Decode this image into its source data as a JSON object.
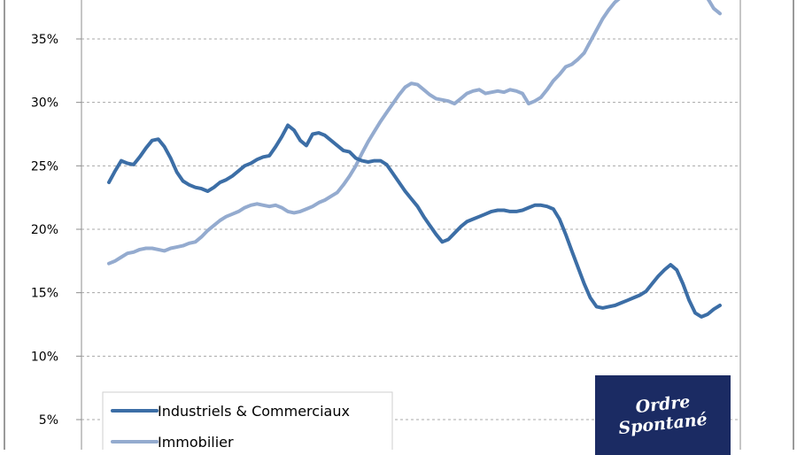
{
  "chart_data": {
    "type": "line",
    "ylim": [
      0,
      38
    ],
    "yticks": [
      "5%",
      "10%",
      "15%",
      "20%",
      "25%",
      "30%",
      "35%"
    ],
    "ytick_values": [
      5,
      10,
      15,
      20,
      25,
      30,
      35
    ],
    "grid": true,
    "legend_position": "bottom-left",
    "series": [
      {
        "name": "Industriels & Commerciaux",
        "color": "#3c6ea6",
        "values": [
          23.7,
          24.6,
          25.4,
          25.2,
          25.1,
          25.7,
          26.4,
          27.0,
          27.1,
          26.5,
          25.6,
          24.5,
          23.8,
          23.5,
          23.3,
          23.2,
          23.0,
          23.3,
          23.7,
          23.9,
          24.2,
          24.6,
          25.0,
          25.2,
          25.5,
          25.7,
          25.8,
          26.5,
          27.3,
          28.2,
          27.8,
          27.0,
          26.6,
          27.5,
          27.6,
          27.4,
          27.0,
          26.6,
          26.2,
          26.1,
          25.6,
          25.4,
          25.3,
          25.4,
          25.4,
          25.1,
          24.4,
          23.7,
          23.0,
          22.4,
          21.8,
          21.0,
          20.3,
          19.6,
          19.0,
          19.2,
          19.7,
          20.2,
          20.6,
          20.8,
          21.0,
          21.2,
          21.4,
          21.5,
          21.5,
          21.4,
          21.4,
          21.5,
          21.7,
          21.9,
          21.9,
          21.8,
          21.6,
          20.8,
          19.6,
          18.3,
          17.0,
          15.7,
          14.6,
          13.9,
          13.8,
          13.9,
          14.0,
          14.2,
          14.4,
          14.6,
          14.8,
          15.1,
          15.7,
          16.3,
          16.8,
          17.2,
          16.8,
          15.7,
          14.4,
          13.4,
          13.1,
          13.3,
          13.7,
          14.0
        ]
      },
      {
        "name": "Immobilier",
        "color": "#94abcf",
        "values": [
          17.3,
          17.5,
          17.8,
          18.1,
          18.2,
          18.4,
          18.5,
          18.5,
          18.4,
          18.3,
          18.5,
          18.6,
          18.7,
          18.9,
          19.0,
          19.4,
          19.9,
          20.3,
          20.7,
          21.0,
          21.2,
          21.4,
          21.7,
          21.9,
          22.0,
          21.9,
          21.8,
          21.9,
          21.7,
          21.4,
          21.3,
          21.4,
          21.6,
          21.8,
          22.1,
          22.3,
          22.6,
          22.9,
          23.5,
          24.2,
          25.0,
          26.0,
          26.9,
          27.7,
          28.5,
          29.2,
          29.9,
          30.6,
          31.2,
          31.5,
          31.4,
          31.0,
          30.6,
          30.3,
          30.2,
          30.1,
          29.9,
          30.3,
          30.7,
          30.9,
          31.0,
          30.7,
          30.8,
          30.9,
          30.8,
          31.0,
          30.9,
          30.7,
          29.9,
          30.1,
          30.4,
          31.0,
          31.7,
          32.2,
          32.8,
          33.0,
          33.4,
          33.9,
          34.8,
          35.7,
          36.6,
          37.3,
          37.9,
          38.3,
          38.5,
          38.6,
          38.7,
          38.9,
          39.2,
          39.5,
          39.6,
          39.7,
          39.8,
          39.6,
          39.3,
          39.0,
          38.6,
          38.2,
          37.4,
          37.0
        ]
      }
    ]
  },
  "logo": {
    "line1": "Ordre",
    "line2": "Spontané"
  }
}
